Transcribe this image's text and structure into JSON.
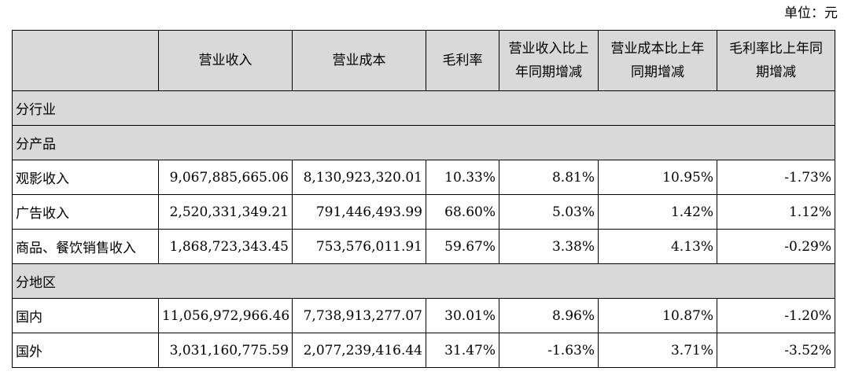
{
  "unit_label": "单位：元",
  "headers": {
    "blank": "",
    "revenue": "营业收入",
    "cost": "营业成本",
    "margin": "毛利率",
    "revenue_change": [
      "营业收入比上",
      "年同期增减"
    ],
    "cost_change": [
      "营业成本比上年",
      "同期增减"
    ],
    "margin_change": [
      "毛利率比上年同",
      "期增减"
    ]
  },
  "sections": {
    "by_industry": "分行业",
    "by_product": "分产品",
    "by_region": "分地区"
  },
  "rows": [
    {
      "label": "观影收入",
      "revenue": "9,067,885,665.06",
      "cost": "8,130,923,320.01",
      "margin": "10.33%",
      "revenue_change": "8.81%",
      "cost_change": "10.95%",
      "margin_change": "-1.73%"
    },
    {
      "label": "广告收入",
      "revenue": "2,520,331,349.21",
      "cost": "791,446,493.99",
      "margin": "68.60%",
      "revenue_change": "5.03%",
      "cost_change": "1.42%",
      "margin_change": "1.12%"
    },
    {
      "label": "商品、餐饮销售收入",
      "revenue": "1,868,723,343.45",
      "cost": "753,576,011.91",
      "margin": "59.67%",
      "revenue_change": "3.38%",
      "cost_change": "4.13%",
      "margin_change": "-0.29%"
    },
    {
      "label": "国内",
      "revenue": "11,056,972,966.46",
      "cost": "7,738,913,277.07",
      "margin": "30.01%",
      "revenue_change": "8.96%",
      "cost_change": "10.87%",
      "margin_change": "-1.20%"
    },
    {
      "label": "国外",
      "revenue": "3,031,160,775.59",
      "cost": "2,077,239,416.44",
      "margin": "31.47%",
      "revenue_change": "-1.63%",
      "cost_change": "3.71%",
      "margin_change": "-3.52%"
    }
  ]
}
